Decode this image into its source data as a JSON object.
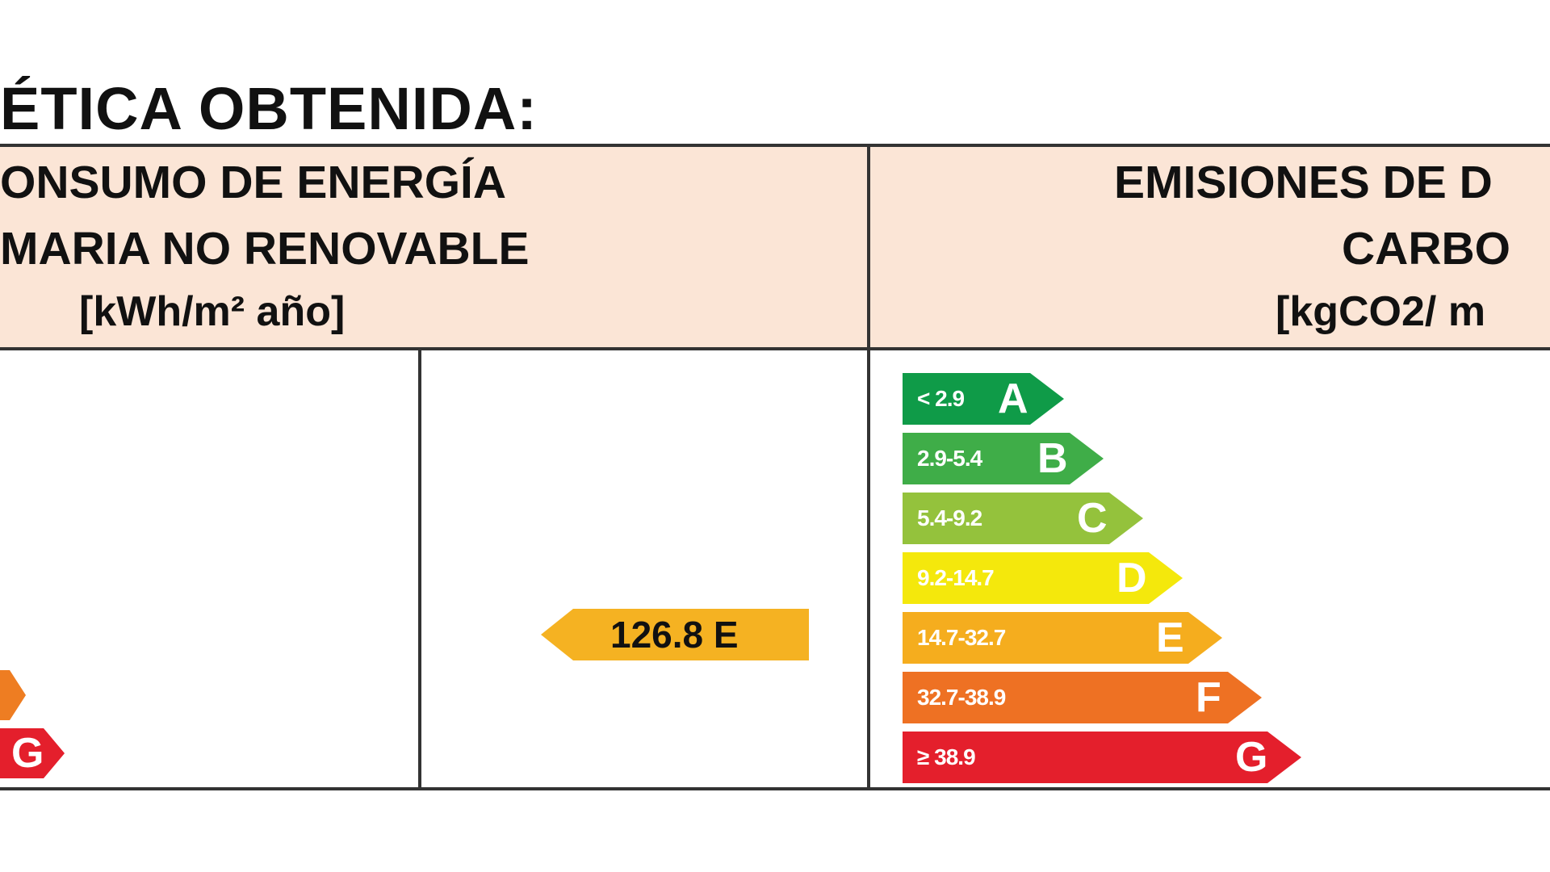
{
  "heading": "ÉTICA OBTENIDA:",
  "left_header": {
    "line1": "ONSUMO DE ENERGÍA",
    "line2": "MARIA NO RENOVABLE",
    "unit": "[kWh/m² año]"
  },
  "right_header": {
    "line1": "EMISIONES DE D",
    "line2": "CARBO",
    "unit": "[kgCO2/ m"
  },
  "energy_marker": {
    "value": "126.8 E",
    "color": "#f5b222"
  },
  "partial_scale": [
    {
      "letter": "",
      "color": "#ee7d22"
    },
    {
      "letter": "G",
      "color": "#e41f2c"
    }
  ],
  "emissions_scale": [
    {
      "range": "< 2.9",
      "letter": "A",
      "color": "#0f9b48"
    },
    {
      "range": "2.9-5.4",
      "letter": "B",
      "color": "#3fad48"
    },
    {
      "range": "5.4-9.2",
      "letter": "C",
      "color": "#94c23c"
    },
    {
      "range": "9.2-14.7",
      "letter": "D",
      "color": "#f4e80c"
    },
    {
      "range": "14.7-32.7",
      "letter": "E",
      "color": "#f5ad1e"
    },
    {
      "range": "32.7-38.9",
      "letter": "F",
      "color": "#ee7123"
    },
    {
      "range": "≥ 38.9",
      "letter": "G",
      "color": "#e41f2c"
    }
  ]
}
